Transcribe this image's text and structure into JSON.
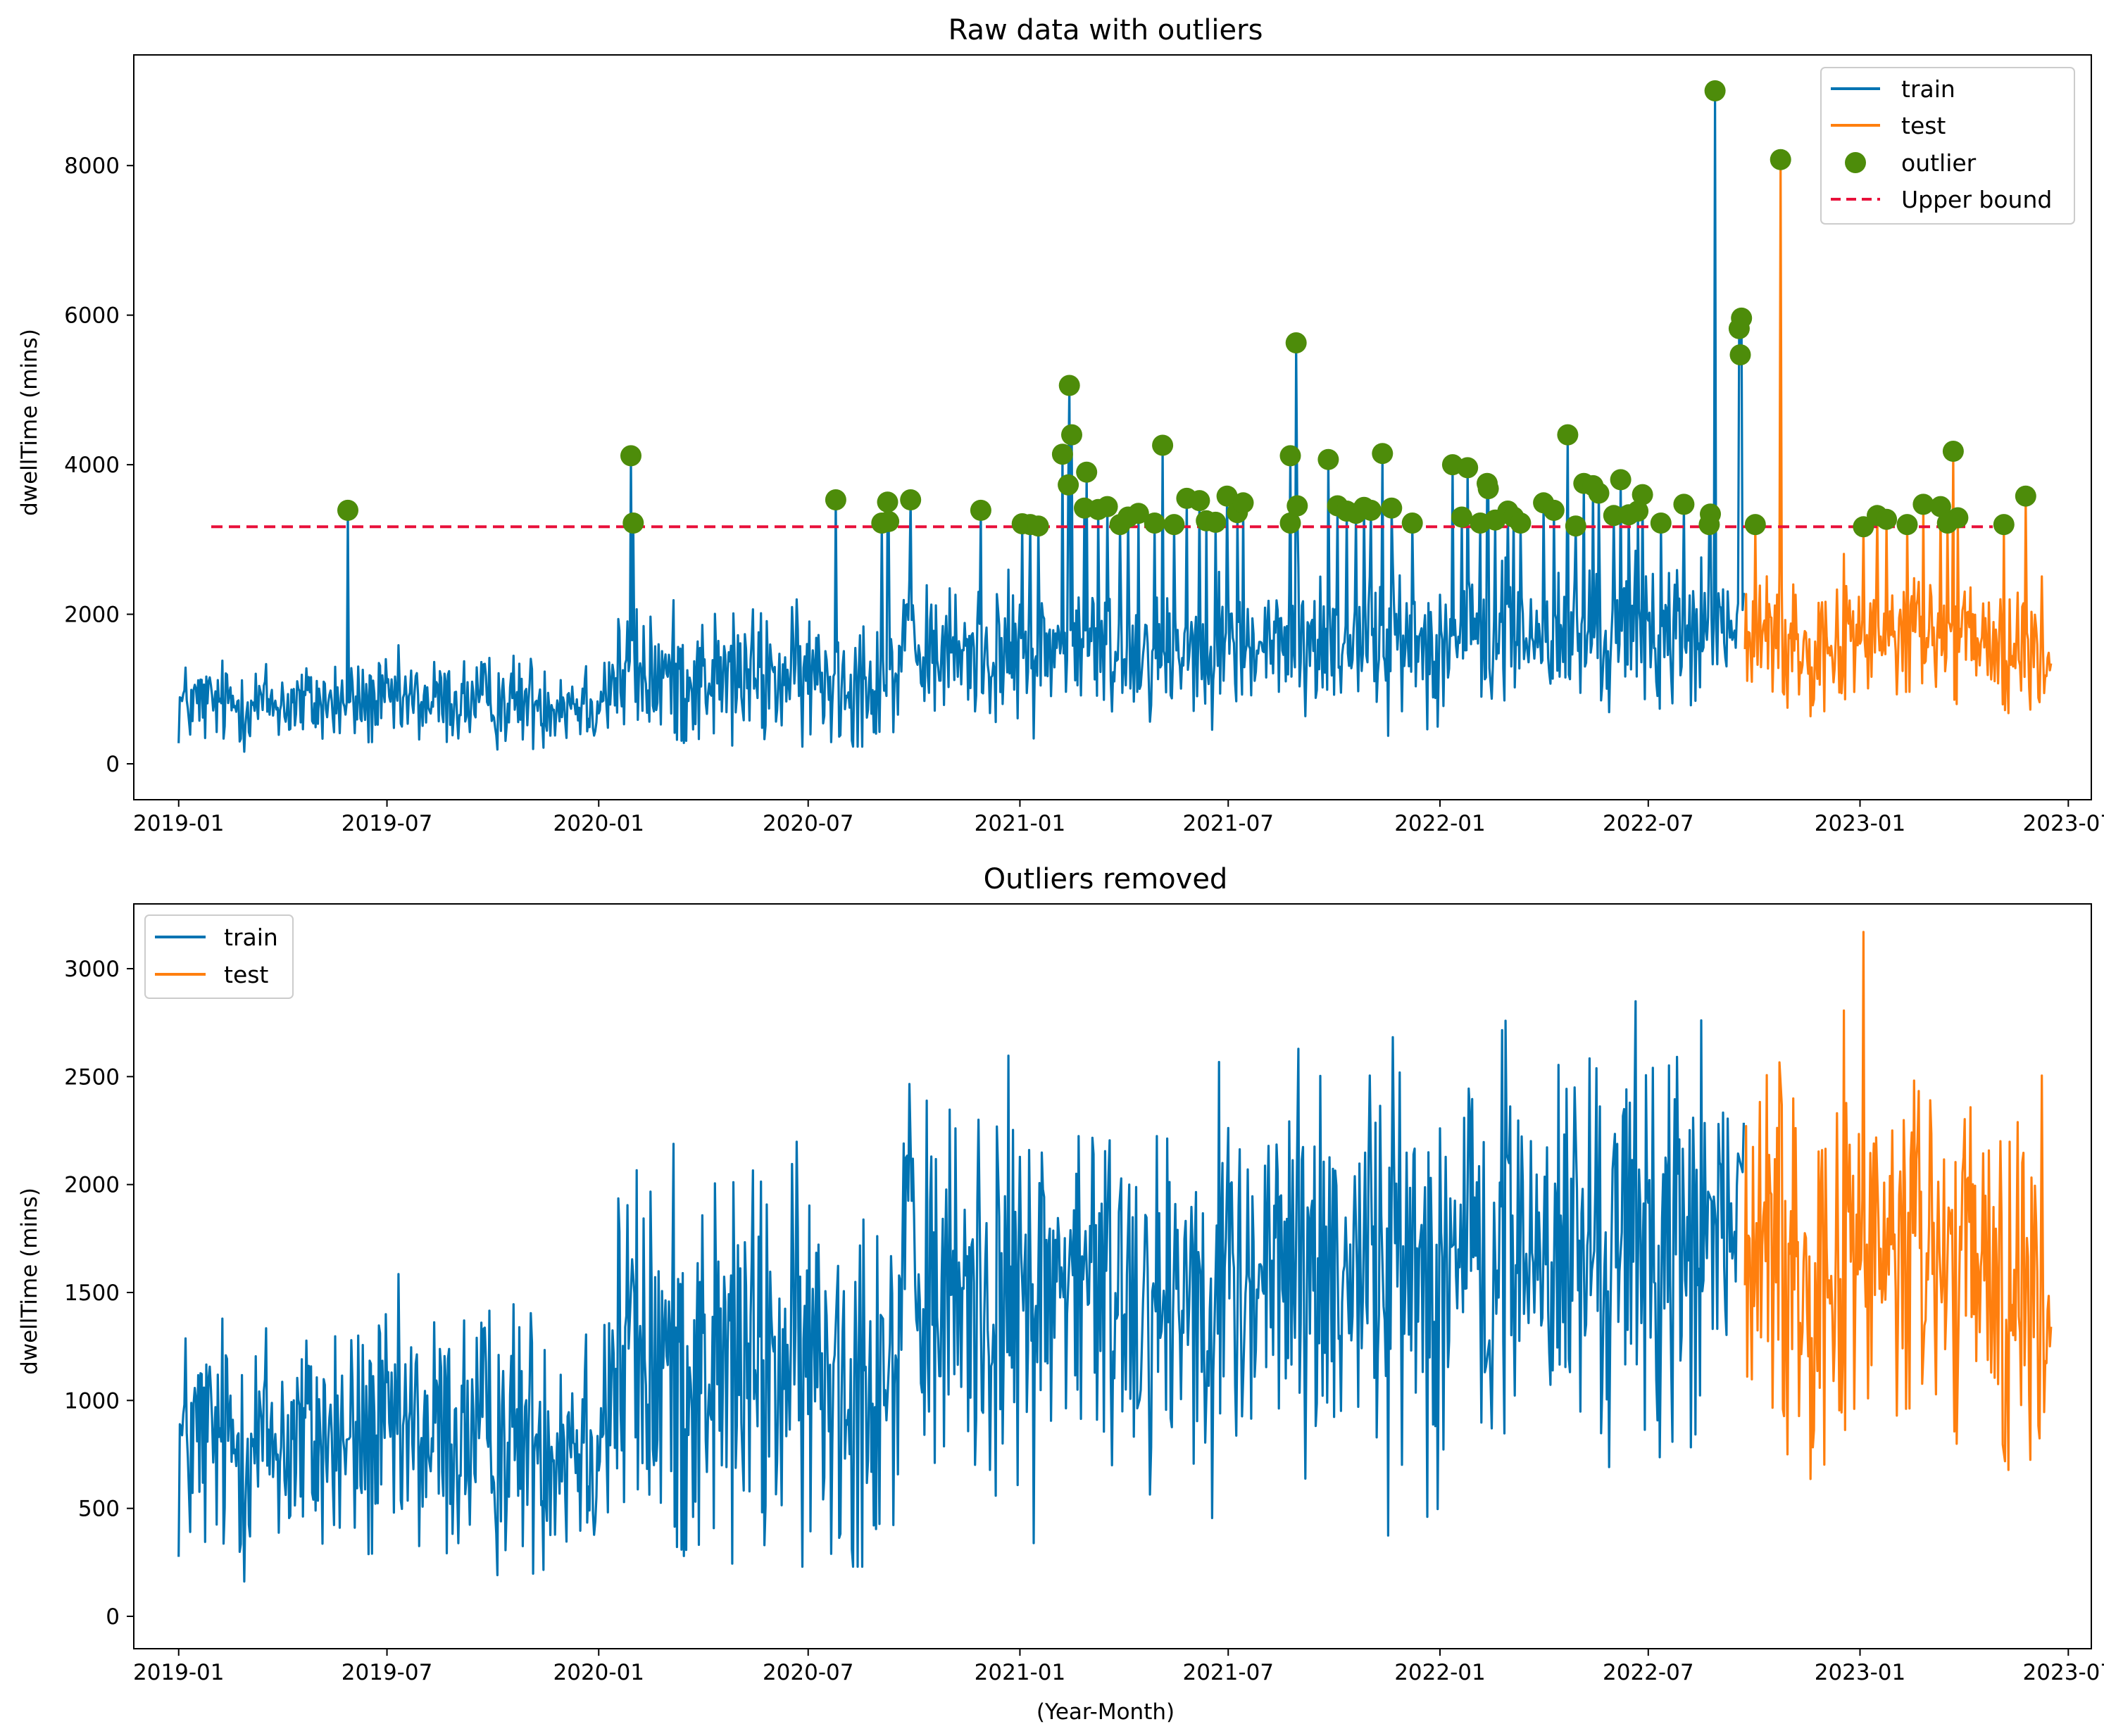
{
  "colors": {
    "train": "#0173b2",
    "test": "#ff7f0e",
    "outlier": "#4d8c0a",
    "upper_bound": "#e8103a",
    "axes": "#000000"
  },
  "chart_data": [
    {
      "type": "line",
      "title": "Raw data with outliers",
      "xlabel": "",
      "ylabel": "dwellTime (mins)",
      "x_range": [
        "2018-11-23",
        "2023-07-21"
      ],
      "ylim": [
        -480,
        9480
      ],
      "yticks": [
        0,
        2000,
        4000,
        6000,
        8000
      ],
      "xticks": [
        "2019-01",
        "2019-07",
        "2020-01",
        "2020-07",
        "2021-01",
        "2021-07",
        "2022-01",
        "2022-07",
        "2023-01",
        "2023-07"
      ],
      "legend": {
        "position": "top-right",
        "entries": [
          "train",
          "test",
          "outlier",
          "Upper bound"
        ]
      },
      "grid": false,
      "upper_bound": 3170,
      "train_range": [
        "2019-01-01",
        "2022-09-22"
      ],
      "test_range": [
        "2022-09-23",
        "2023-06-16"
      ],
      "series": [
        {
          "name": "train",
          "kind": "daily-line",
          "trend_knots": [
            [
              "2019-01-01",
              800
            ],
            [
              "2019-12-31",
              850
            ],
            [
              "2020-01-15",
              1150
            ],
            [
              "2020-09-01",
              1150
            ],
            [
              "2020-10-01",
              1450
            ],
            [
              "2021-06-01",
              1550
            ],
            [
              "2022-09-22",
              1750
            ]
          ],
          "spread_knots": [
            [
              "2019-01-01",
              450
            ],
            [
              "2019-12-31",
              480
            ],
            [
              "2020-01-15",
              700
            ],
            [
              "2022-09-22",
              750
            ]
          ]
        },
        {
          "name": "test",
          "kind": "daily-line",
          "trend_knots": [
            [
              "2022-09-23",
              1650
            ],
            [
              "2023-03-01",
              1700
            ],
            [
              "2023-06-16",
              1350
            ]
          ],
          "spread_knots": [
            [
              "2022-09-23",
              700
            ],
            [
              "2023-06-16",
              700
            ]
          ]
        },
        {
          "name": "outlier",
          "kind": "scatter",
          "points": [
            [
              "2019-05-28",
              3390
            ],
            [
              "2020-01-29",
              4120
            ],
            [
              "2020-01-31",
              3220
            ],
            [
              "2020-07-25",
              3530
            ],
            [
              "2020-09-03",
              3220
            ],
            [
              "2020-09-08",
              3500
            ],
            [
              "2020-09-09",
              3240
            ],
            [
              "2020-09-28",
              3530
            ],
            [
              "2020-11-28",
              3390
            ],
            [
              "2021-01-03",
              3210
            ],
            [
              "2021-01-10",
              3200
            ],
            [
              "2021-01-17",
              3180
            ],
            [
              "2021-02-07",
              4140
            ],
            [
              "2021-02-13",
              5060
            ],
            [
              "2021-02-15",
              4400
            ],
            [
              "2021-02-12",
              3730
            ],
            [
              "2021-02-28",
              3900
            ],
            [
              "2021-02-26",
              3420
            ],
            [
              "2021-03-10",
              3400
            ],
            [
              "2021-03-18",
              3440
            ],
            [
              "2021-03-29",
              3200
            ],
            [
              "2021-04-05",
              3300
            ],
            [
              "2021-04-14",
              3350
            ],
            [
              "2021-04-28",
              3220
            ],
            [
              "2021-05-05",
              4260
            ],
            [
              "2021-05-15",
              3200
            ],
            [
              "2021-05-26",
              3550
            ],
            [
              "2021-06-06",
              3520
            ],
            [
              "2021-06-12",
              3250
            ],
            [
              "2021-06-20",
              3230
            ],
            [
              "2021-06-30",
              3580
            ],
            [
              "2021-07-09",
              3360
            ],
            [
              "2021-07-14",
              3490
            ],
            [
              "2021-08-24",
              4120
            ],
            [
              "2021-08-24",
              3220
            ],
            [
              "2021-08-30",
              3450
            ],
            [
              "2021-08-29",
              5630
            ],
            [
              "2021-09-26",
              4070
            ],
            [
              "2021-10-04",
              3450
            ],
            [
              "2021-10-12",
              3380
            ],
            [
              "2021-10-20",
              3350
            ],
            [
              "2021-10-27",
              3430
            ],
            [
              "2021-11-02",
              3390
            ],
            [
              "2021-11-12",
              4150
            ],
            [
              "2021-11-20",
              3420
            ],
            [
              "2021-12-08",
              3220
            ],
            [
              "2022-01-12",
              4000
            ],
            [
              "2022-01-20",
              3300
            ],
            [
              "2022-01-25",
              3960
            ],
            [
              "2022-02-05",
              3220
            ],
            [
              "2022-02-11",
              3750
            ],
            [
              "2022-02-12",
              3680
            ],
            [
              "2022-02-18",
              3260
            ],
            [
              "2022-03-01",
              3380
            ],
            [
              "2022-03-06",
              3300
            ],
            [
              "2022-03-12",
              3220
            ],
            [
              "2022-04-01",
              3490
            ],
            [
              "2022-04-10",
              3390
            ],
            [
              "2022-04-22",
              4400
            ],
            [
              "2022-04-29",
              3180
            ],
            [
              "2022-05-06",
              3750
            ],
            [
              "2022-05-14",
              3720
            ],
            [
              "2022-05-19",
              3620
            ],
            [
              "2022-06-01",
              3320
            ],
            [
              "2022-06-07",
              3800
            ],
            [
              "2022-06-14",
              3330
            ],
            [
              "2022-06-26",
              3600
            ],
            [
              "2022-06-22",
              3380
            ],
            [
              "2022-07-12",
              3220
            ],
            [
              "2022-08-01",
              3470
            ],
            [
              "2022-08-24",
              3340
            ],
            [
              "2022-08-23",
              3200
            ],
            [
              "2022-08-28",
              9000
            ],
            [
              "2022-09-20",
              5960
            ],
            [
              "2022-09-18",
              5820
            ],
            [
              "2022-09-19",
              5470
            ],
            [
              "2022-10-02",
              3200
            ],
            [
              "2022-10-24",
              8080
            ],
            [
              "2023-01-04",
              3170
            ],
            [
              "2023-01-16",
              3320
            ],
            [
              "2023-01-24",
              3270
            ],
            [
              "2023-02-11",
              3200
            ],
            [
              "2023-02-25",
              3470
            ],
            [
              "2023-03-12",
              3440
            ],
            [
              "2023-03-23",
              4180
            ],
            [
              "2023-03-27",
              3290
            ],
            [
              "2023-03-18",
              3220
            ],
            [
              "2023-05-06",
              3200
            ],
            [
              "2023-05-25",
              3580
            ]
          ]
        },
        {
          "name": "Upper bound",
          "kind": "hline",
          "y": 3170
        }
      ]
    },
    {
      "type": "line",
      "title": "Outliers removed",
      "xlabel": "(Year-Month)",
      "ylabel": "dwellTime (mins)",
      "x_range": [
        "2018-11-23",
        "2023-07-21"
      ],
      "ylim": [
        -150,
        3300
      ],
      "yticks": [
        0,
        500,
        1000,
        1500,
        2000,
        2500,
        3000
      ],
      "xticks": [
        "2019-01",
        "2019-07",
        "2020-01",
        "2020-07",
        "2021-01",
        "2021-07",
        "2022-01",
        "2022-07",
        "2023-01",
        "2023-07"
      ],
      "legend": {
        "position": "top-left",
        "entries": [
          "train",
          "test"
        ]
      },
      "grid": false,
      "series": [
        {
          "name": "train",
          "kind": "daily-line",
          "same_as": "chart_data.0.series.0",
          "clip_max": 3170
        },
        {
          "name": "test",
          "kind": "daily-line",
          "same_as": "chart_data.0.series.1",
          "clip_max": 3170
        }
      ]
    }
  ]
}
